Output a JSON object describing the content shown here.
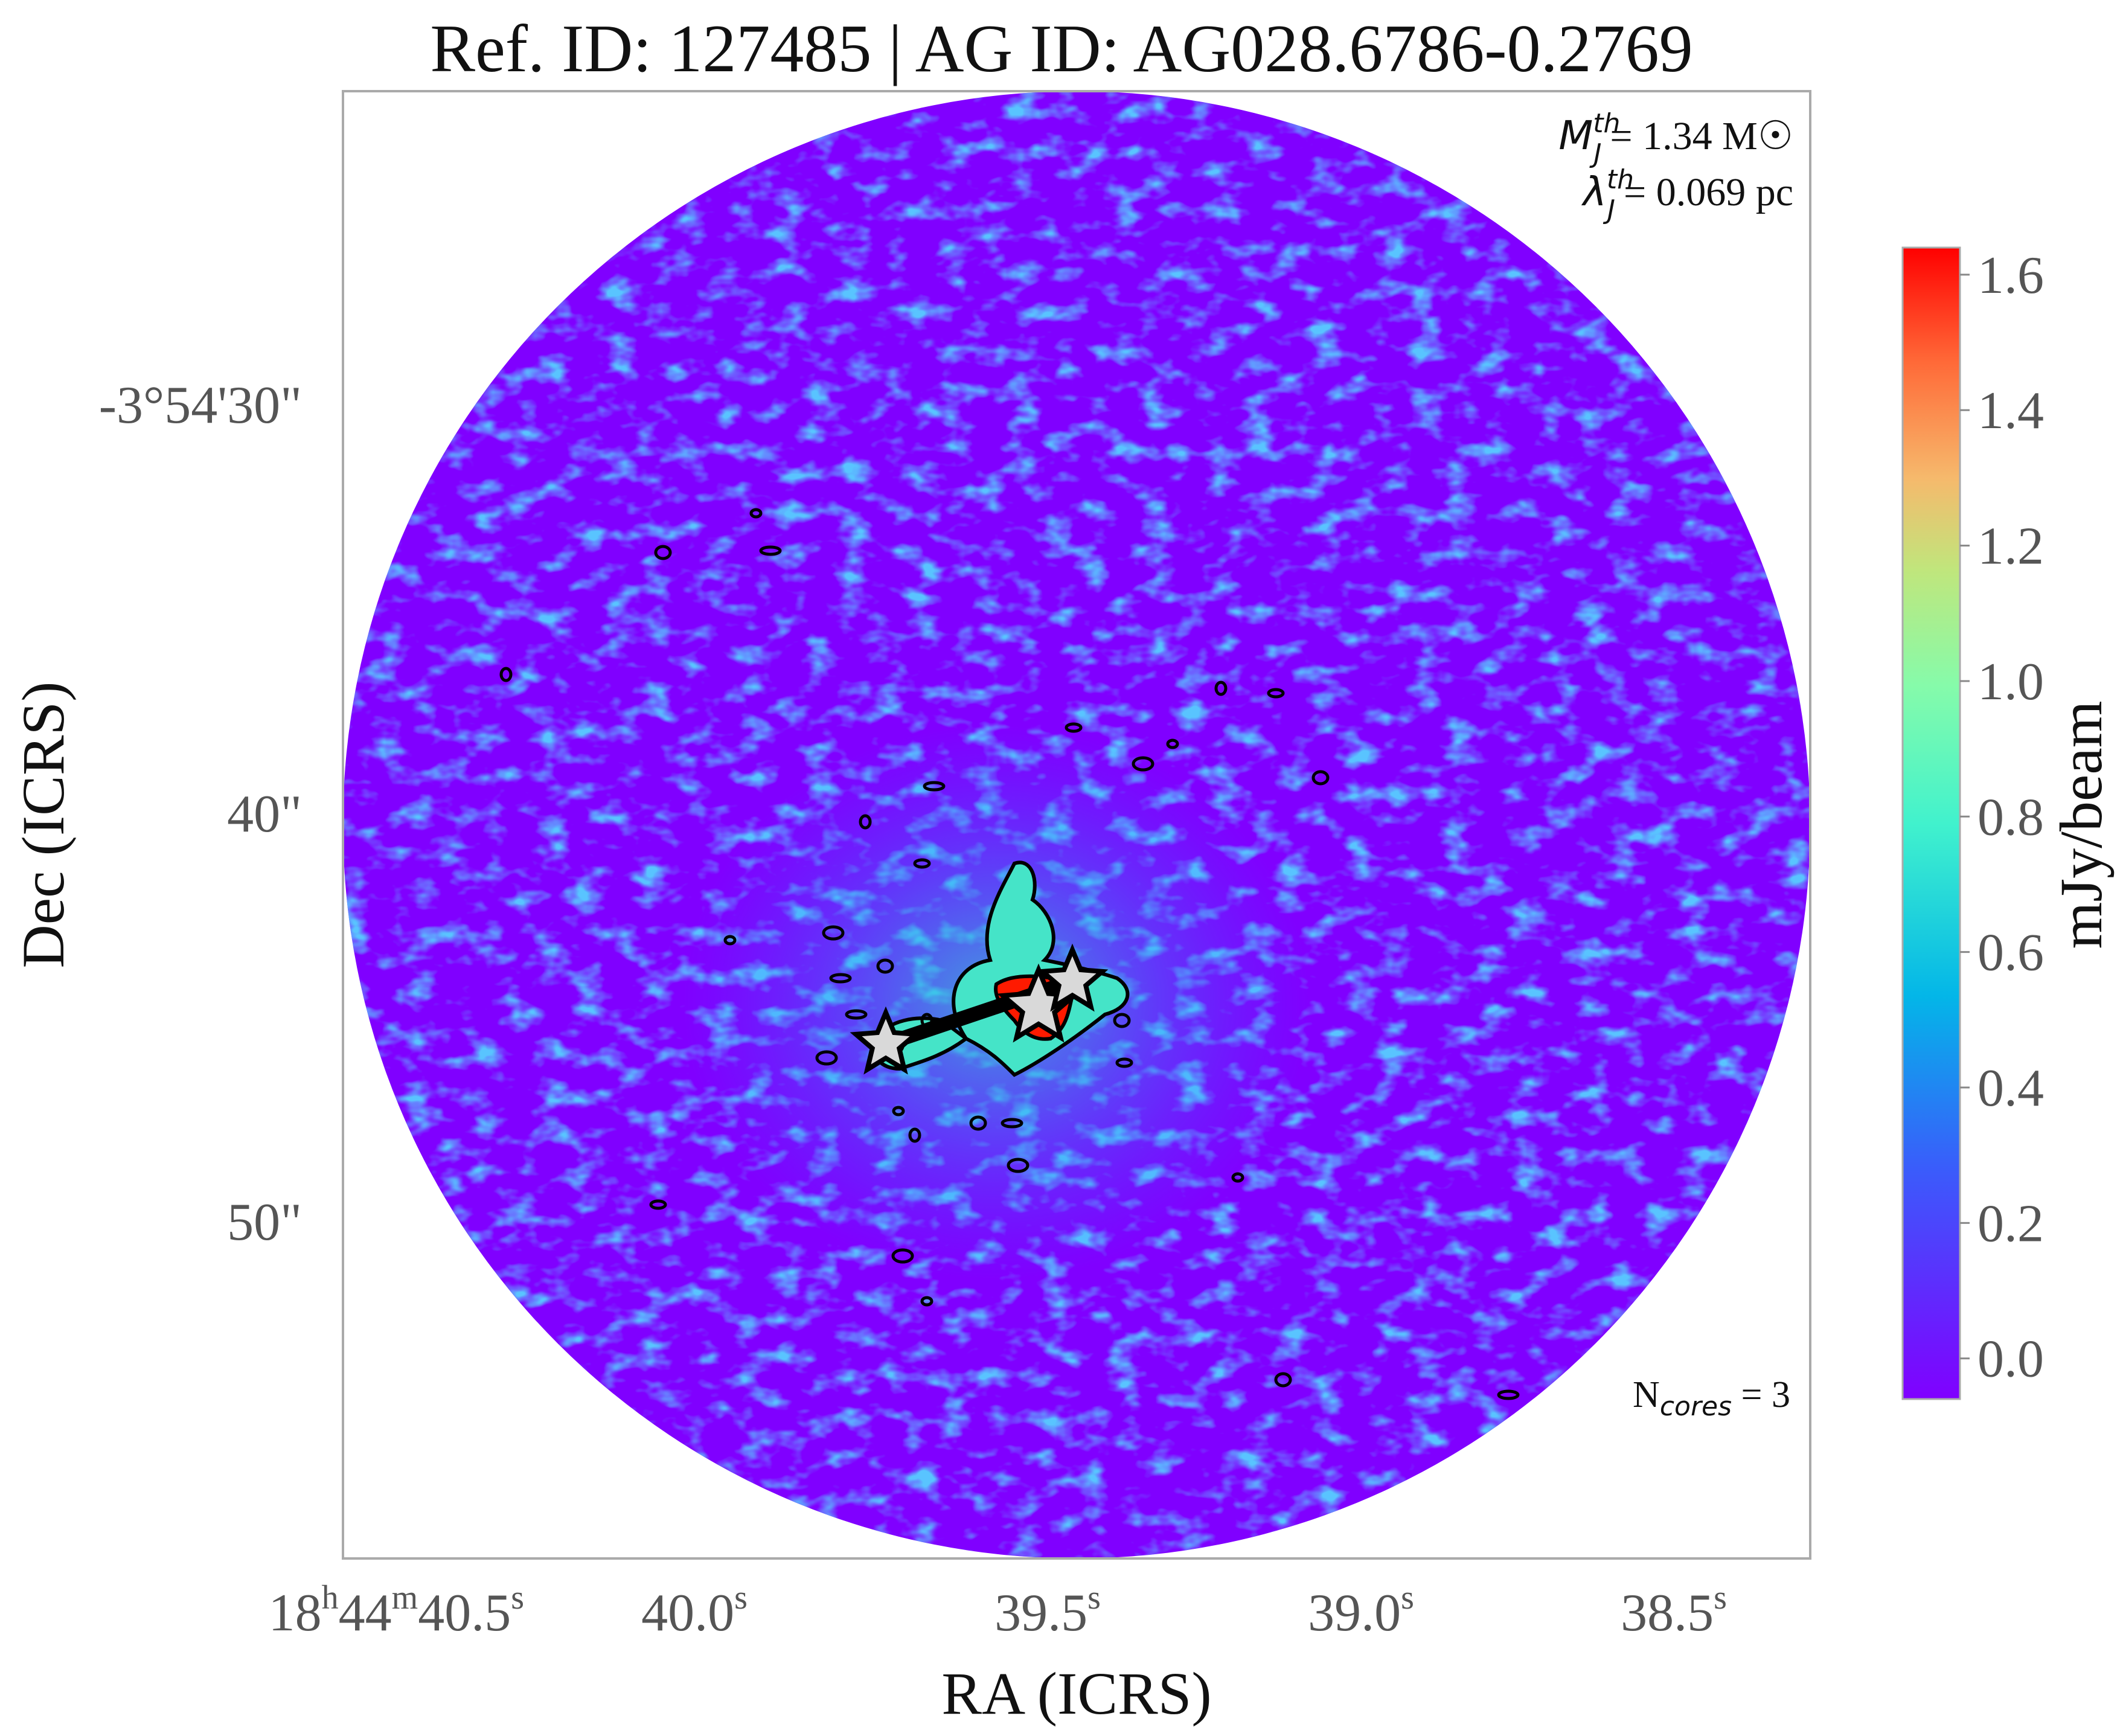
{
  "chart_data": {
    "type": "heatmap",
    "title": "Ref. ID: 127485 | AG ID: AG028.6786-0.2769",
    "xlabel": "RA (ICRS)",
    "ylabel": "Dec (ICRS)",
    "x_ticks": [
      {
        "label": "18",
        "h": "h",
        "m_val": "44",
        "m": "m",
        "sec": "40.5",
        "s": "s"
      },
      {
        "sec": "40.0",
        "s": "s"
      },
      {
        "sec": "39.5",
        "s": "s"
      },
      {
        "sec": "39.0",
        "s": "s"
      },
      {
        "sec": "38.5",
        "s": "s"
      }
    ],
    "y_ticks": [
      "-3°54'30\"",
      "40\"",
      "50\""
    ],
    "colorbar": {
      "label": "mJy/beam",
      "colormap": "rainbow",
      "range": [
        -0.06,
        1.64
      ],
      "ticks": [
        "0.0",
        "0.2",
        "0.4",
        "0.6",
        "0.8",
        "1.0",
        "1.2",
        "1.4",
        "1.6"
      ],
      "tick_values": [
        0.0,
        0.2,
        0.4,
        0.6,
        0.8,
        1.0,
        1.2,
        1.4,
        1.6
      ]
    },
    "annotations": {
      "mass_symbol": "M",
      "mass_sup": "th",
      "mass_sub": "J",
      "mass_value": "= 1.34 M☉",
      "length_symbol": "λ",
      "length_sup": "th",
      "length_sub": "J",
      "length_value": "= 0.069 pc",
      "ncores_prefix": "N",
      "ncores_sub": "cores",
      "ncores_value": " = 3"
    },
    "n_cores": 3,
    "contour_color": "#000000",
    "core_marker_color": "#d9d9d9",
    "background_color": "#8000ff"
  }
}
